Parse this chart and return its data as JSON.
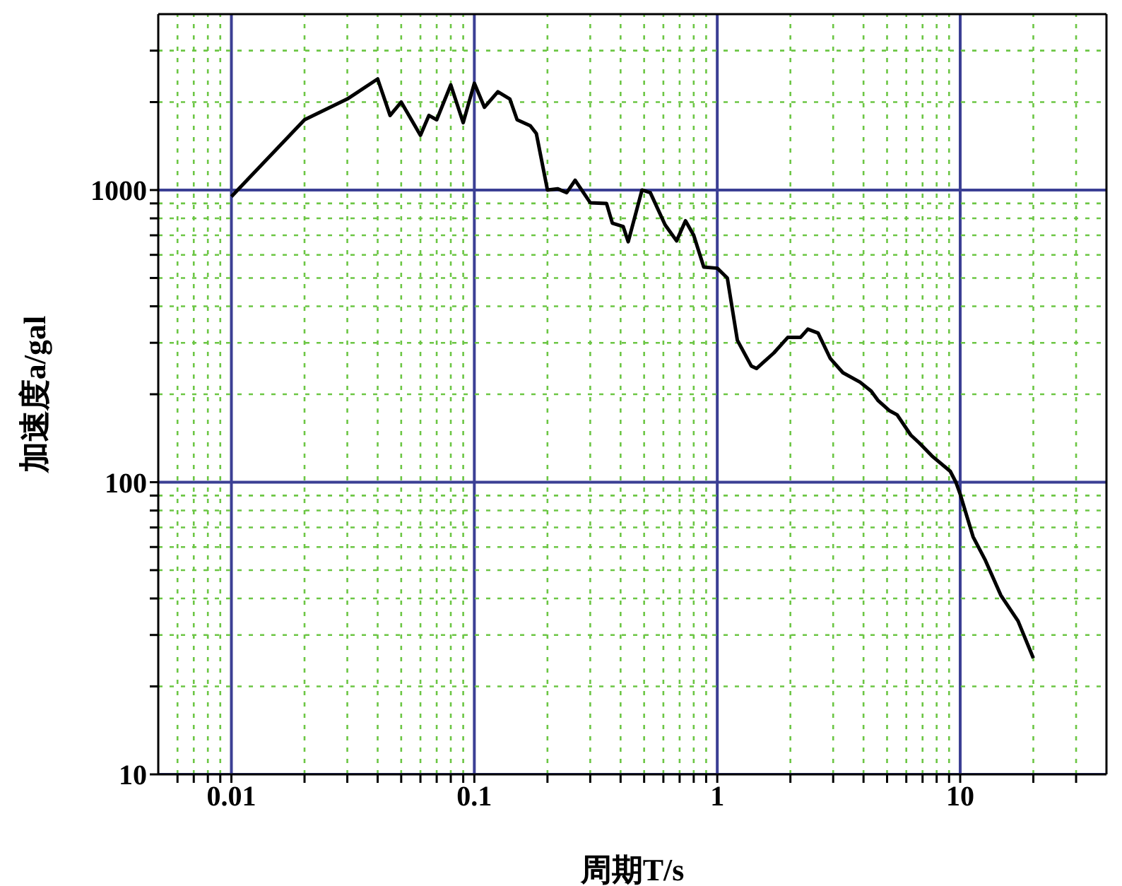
{
  "chart_data": {
    "type": "line",
    "xlabel": "周期T/s",
    "ylabel": "加速度a/gal",
    "log": "xy",
    "grid": true,
    "legend": false,
    "marker": "none",
    "line_style": "solid",
    "xlim": [
      0.005,
      40
    ],
    "ylim": [
      10,
      4000
    ],
    "xticks": [
      {
        "value": 0.006,
        "label": null
      },
      {
        "value": 0.007,
        "label": null
      },
      {
        "value": 0.008,
        "label": null
      },
      {
        "value": 0.009,
        "label": null
      },
      {
        "value": 0.01,
        "label": "0.01"
      },
      {
        "value": 0.02,
        "label": null
      },
      {
        "value": 0.03,
        "label": null
      },
      {
        "value": 0.04,
        "label": null
      },
      {
        "value": 0.05,
        "label": null
      },
      {
        "value": 0.06,
        "label": null
      },
      {
        "value": 0.07,
        "label": null
      },
      {
        "value": 0.08,
        "label": null
      },
      {
        "value": 0.09,
        "label": null
      },
      {
        "value": 0.1,
        "label": "0.1"
      },
      {
        "value": 0.2,
        "label": null
      },
      {
        "value": 0.3,
        "label": null
      },
      {
        "value": 0.4,
        "label": null
      },
      {
        "value": 0.5,
        "label": null
      },
      {
        "value": 0.6,
        "label": null
      },
      {
        "value": 0.7,
        "label": null
      },
      {
        "value": 0.8,
        "label": null
      },
      {
        "value": 0.9,
        "label": null
      },
      1,
      {
        "value": 2,
        "label": null
      },
      {
        "value": 3,
        "label": null
      },
      {
        "value": 4,
        "label": null
      },
      {
        "value": 5,
        "label": null
      },
      {
        "value": 6,
        "label": null
      },
      {
        "value": 7,
        "label": null
      },
      {
        "value": 8,
        "label": null
      },
      {
        "value": 9,
        "label": null
      },
      10,
      {
        "value": 20,
        "label": null
      },
      {
        "value": 30,
        "label": null
      }
    ],
    "yticks": [
      10,
      {
        "value": 20,
        "label": null
      },
      {
        "value": 30,
        "label": null
      },
      {
        "value": 40,
        "label": null
      },
      {
        "value": 50,
        "label": null
      },
      {
        "value": 60,
        "label": null
      },
      {
        "value": 70,
        "label": null
      },
      {
        "value": 80,
        "label": null
      },
      {
        "value": 90,
        "label": null
      },
      100,
      {
        "value": 200,
        "label": null
      },
      {
        "value": 300,
        "label": null
      },
      {
        "value": 400,
        "label": null
      },
      {
        "value": 500,
        "label": null
      },
      {
        "value": 600,
        "label": null
      },
      {
        "value": 700,
        "label": null
      },
      {
        "value": 800,
        "label": null
      },
      {
        "value": 900,
        "label": null
      },
      1000,
      {
        "value": 2000,
        "label": null
      },
      {
        "value": 3000,
        "label": null
      }
    ],
    "x": [
      0.01,
      0.02,
      0.03,
      0.04,
      0.045,
      0.05,
      0.06,
      0.065,
      0.07,
      0.08,
      0.09,
      0.1,
      0.11,
      0.125,
      0.14,
      0.15,
      0.17,
      0.18,
      0.2,
      0.22,
      0.24,
      0.26,
      0.3,
      0.35,
      0.37,
      0.41,
      0.43,
      0.49,
      0.53,
      0.61,
      0.68,
      0.74,
      0.8,
      0.88,
      1.0,
      1.1,
      1.21,
      1.38,
      1.45,
      1.71,
      1.95,
      2.2,
      2.36,
      2.6,
      2.92,
      3.29,
      3.87,
      4.3,
      4.6,
      5.1,
      5.5,
      6.26,
      6.8,
      7.65,
      9.1,
      9.6,
      10,
      11.3,
      12.7,
      14.7,
      17.3,
      20
    ],
    "series": [
      {
        "color": "#000000",
        "values": [
          950,
          1740,
          2050,
          2400,
          1800,
          2000,
          1540,
          1800,
          1740,
          2290,
          1700,
          2320,
          1920,
          2170,
          2050,
          1740,
          1660,
          1560,
          1000,
          1010,
          980,
          1080,
          905,
          900,
          770,
          750,
          665,
          1000,
          980,
          760,
          670,
          785,
          700,
          545,
          540,
          500,
          306,
          250,
          245,
          277,
          313,
          313,
          334,
          324,
          265,
          237,
          220,
          205,
          190,
          176,
          170,
          145,
          136,
          123,
          109,
          100,
          91,
          65,
          54,
          41,
          33.5,
          25
        ]
      }
    ]
  }
}
